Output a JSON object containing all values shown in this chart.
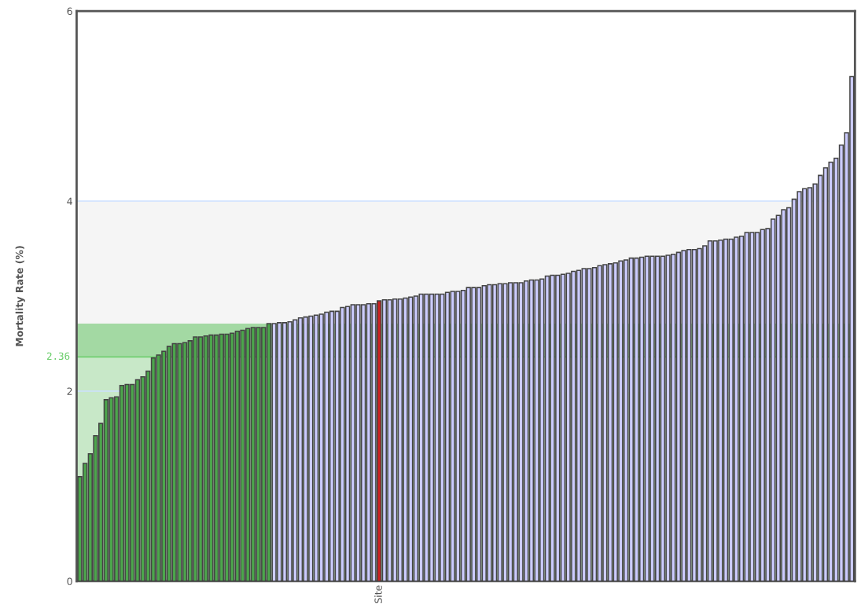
{
  "chart_data": {
    "type": "bar",
    "ylabel": "Mortality Rate (%)",
    "categories": [
      null,
      null,
      null,
      null,
      null,
      null,
      null,
      null,
      null,
      null,
      null,
      null,
      null,
      null,
      null,
      null,
      null,
      null,
      null,
      null,
      null,
      null,
      null,
      null,
      null,
      null,
      null,
      null,
      null,
      null,
      null,
      null,
      null,
      null,
      null,
      null,
      null,
      null,
      null,
      null,
      null,
      null,
      null,
      null,
      null,
      null,
      null,
      null,
      null,
      null,
      null,
      null,
      null,
      null,
      null,
      null,
      null,
      "Site",
      null,
      null,
      null,
      null,
      null,
      null,
      null,
      null,
      null,
      null,
      null,
      null,
      null,
      null,
      null,
      null,
      null,
      null,
      null,
      null,
      null,
      null,
      null,
      null,
      null,
      null,
      null,
      null,
      null,
      null,
      null,
      null,
      null,
      null,
      null,
      null,
      null,
      null,
      null,
      null,
      null,
      null,
      null,
      null,
      null,
      null,
      null,
      null,
      null,
      null,
      null,
      null,
      null,
      null,
      null,
      null,
      null,
      null,
      null,
      null,
      null,
      null,
      null,
      null,
      null,
      null,
      null,
      null,
      null,
      null,
      null,
      null,
      null,
      null,
      null,
      null,
      null,
      null,
      null,
      null,
      null,
      null,
      null,
      null,
      null,
      null,
      null,
      null,
      null,
      null
    ],
    "values": [
      1.1,
      1.24,
      1.34,
      1.53,
      1.66,
      1.91,
      1.93,
      1.94,
      2.06,
      2.07,
      2.07,
      2.12,
      2.15,
      2.21,
      2.35,
      2.38,
      2.42,
      2.47,
      2.5,
      2.5,
      2.51,
      2.53,
      2.57,
      2.57,
      2.58,
      2.59,
      2.59,
      2.6,
      2.6,
      2.61,
      2.63,
      2.64,
      2.66,
      2.67,
      2.67,
      2.67,
      2.71,
      2.71,
      2.72,
      2.72,
      2.73,
      2.75,
      2.77,
      2.78,
      2.79,
      2.8,
      2.81,
      2.83,
      2.84,
      2.84,
      2.88,
      2.89,
      2.91,
      2.91,
      2.91,
      2.92,
      2.92,
      2.95,
      2.96,
      2.96,
      2.97,
      2.97,
      2.98,
      2.99,
      3.0,
      3.02,
      3.02,
      3.02,
      3.02,
      3.02,
      3.04,
      3.05,
      3.05,
      3.06,
      3.09,
      3.09,
      3.09,
      3.11,
      3.12,
      3.12,
      3.13,
      3.13,
      3.14,
      3.14,
      3.14,
      3.16,
      3.17,
      3.17,
      3.18,
      3.21,
      3.22,
      3.22,
      3.23,
      3.24,
      3.26,
      3.27,
      3.29,
      3.29,
      3.3,
      3.32,
      3.33,
      3.34,
      3.35,
      3.37,
      3.38,
      3.4,
      3.4,
      3.41,
      3.42,
      3.42,
      3.42,
      3.42,
      3.43,
      3.44,
      3.46,
      3.48,
      3.49,
      3.49,
      3.5,
      3.53,
      3.58,
      3.58,
      3.59,
      3.6,
      3.6,
      3.62,
      3.63,
      3.67,
      3.67,
      3.67,
      3.7,
      3.71,
      3.81,
      3.85,
      3.91,
      3.93,
      4.02,
      4.1,
      4.13,
      4.14,
      4.18,
      4.27,
      4.35,
      4.41,
      4.45,
      4.59,
      4.72,
      5.31
    ],
    "colors": [
      "#4ca64c",
      "#4ca64c",
      "#4ca64c",
      "#4ca64c",
      "#4ca64c",
      "#4ca64c",
      "#4ca64c",
      "#4ca64c",
      "#4ca64c",
      "#4ca64c",
      "#4ca64c",
      "#4ca64c",
      "#4ca64c",
      "#4ca64c",
      "#4ca64c",
      "#4ca64c",
      "#4ca64c",
      "#4ca64c",
      "#4ca64c",
      "#4ca64c",
      "#4ca64c",
      "#4ca64c",
      "#4ca64c",
      "#4ca64c",
      "#4ca64c",
      "#4ca64c",
      "#4ca64c",
      "#4ca64c",
      "#4ca64c",
      "#4ca64c",
      "#4ca64c",
      "#4ca64c",
      "#4ca64c",
      "#4ca64c",
      "#4ca64c",
      "#4ca64c",
      "#4ca64c",
      "#ccccff",
      "#ccccff",
      "#ccccff",
      "#ccccff",
      "#ccccff",
      "#ccccff",
      "#ccccff",
      "#ccccff",
      "#ccccff",
      "#ccccff",
      "#ccccff",
      "#ccccff",
      "#ccccff",
      "#ccccff",
      "#ccccff",
      "#ccccff",
      "#ccccff",
      "#ccccff",
      "#ccccff",
      "#ccccff",
      "#cc2222",
      "#ccccff",
      "#ccccff",
      "#ccccff",
      "#ccccff",
      "#ccccff",
      "#ccccff",
      "#ccccff",
      "#ccccff",
      "#ccccff",
      "#ccccff",
      "#ccccff",
      "#ccccff",
      "#ccccff",
      "#ccccff",
      "#ccccff",
      "#ccccff",
      "#ccccff",
      "#ccccff",
      "#ccccff",
      "#ccccff",
      "#ccccff",
      "#ccccff",
      "#ccccff",
      "#ccccff",
      "#ccccff",
      "#ccccff",
      "#ccccff",
      "#ccccff",
      "#ccccff",
      "#ccccff",
      "#ccccff",
      "#ccccff",
      "#ccccff",
      "#ccccff",
      "#ccccff",
      "#ccccff",
      "#ccccff",
      "#ccccff",
      "#ccccff",
      "#ccccff",
      "#ccccff",
      "#ccccff",
      "#ccccff",
      "#ccccff",
      "#ccccff",
      "#ccccff",
      "#ccccff",
      "#ccccff",
      "#ccccff",
      "#ccccff",
      "#ccccff",
      "#ccccff",
      "#ccccff",
      "#ccccff",
      "#ccccff",
      "#ccccff",
      "#ccccff",
      "#ccccff",
      "#ccccff",
      "#ccccff",
      "#ccccff",
      "#ccccff",
      "#ccccff",
      "#ccccff",
      "#ccccff",
      "#ccccff",
      "#ccccff",
      "#ccccff",
      "#ccccff",
      "#ccccff",
      "#ccccff",
      "#ccccff",
      "#ccccff",
      "#ccccff",
      "#ccccff",
      "#ccccff",
      "#ccccff",
      "#ccccff",
      "#ccccff",
      "#ccccff",
      "#ccccff",
      "#ccccff",
      "#ccccff",
      "#ccccff",
      "#ccccff",
      "#ccccff",
      "#ccccff",
      "#ccccff",
      "#ccccff",
      "#ccccff"
    ],
    "ylim": [
      0,
      6
    ],
    "yticks": [
      0,
      2,
      4,
      6
    ],
    "grid": "y",
    "bands": [
      {
        "axis": "y",
        "from": 0,
        "to": 2.36,
        "color": "#c8e8c8"
      },
      {
        "axis": "y",
        "from": 2.36,
        "to": 2.71,
        "color": "#a3d9a3"
      },
      {
        "axis": "y",
        "from": 2.71,
        "to": 4,
        "color": "#f5f5f5"
      }
    ],
    "ref_lines": [
      {
        "axis": "y",
        "value": 2.36,
        "label": "2.36",
        "color": "#66cc66"
      }
    ]
  }
}
